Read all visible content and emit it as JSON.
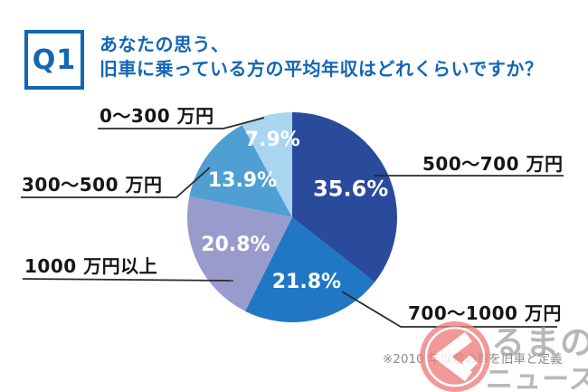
{
  "header": {
    "q_label": "Q1",
    "title_line1": "あなたの思う、",
    "title_line2": "旧車に乗っている方の平均年収はどれくらいですか？",
    "accent_color": "#1266b4"
  },
  "chart_data": {
    "type": "pie",
    "title": "あなたの思う、旧車に乗っている方の平均年収はどれくらいですか？",
    "start_angle": "12-oclock",
    "direction": "clockwise",
    "value_suffix": "%",
    "legend_position": "callout-labels",
    "slices": [
      {
        "label": "500〜700 万円",
        "value": 35.6,
        "color": "#2a4a9b",
        "pct_text": "35.6%"
      },
      {
        "label": "700〜1000 万円",
        "value": 21.8,
        "color": "#2077c4",
        "pct_text": "21.8%"
      },
      {
        "label": "1000 万円以上",
        "value": 20.8,
        "color": "#989bcc",
        "pct_text": "20.8%"
      },
      {
        "label": "300〜500 万円",
        "value": 13.9,
        "color": "#4f9fd3",
        "pct_text": "13.9%"
      },
      {
        "label": "0〜300 万円",
        "value": 7.9,
        "color": "#a9d5f1",
        "pct_text": "7.9%"
      }
    ]
  },
  "footnote": "※2010 年以前の車を旧車と定義",
  "watermark": {
    "logo_name": "kuruma-no-news-logo",
    "text_line1": "るまの",
    "text_line2": "ニュース",
    "circle_color": "#ee7d7d"
  }
}
